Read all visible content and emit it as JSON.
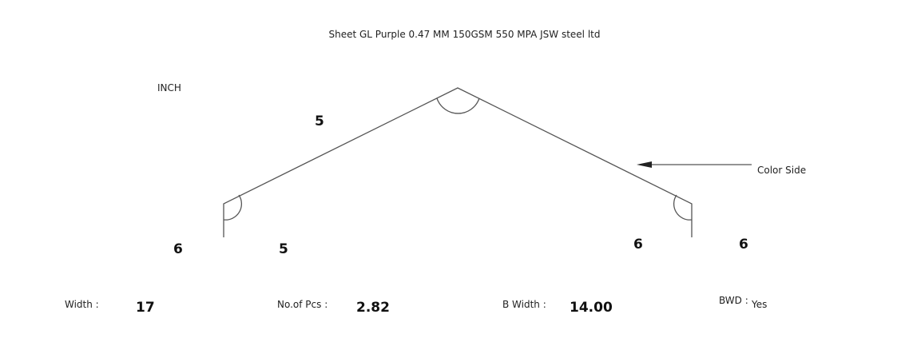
{
  "title": "Sheet GL Purple 0.47 MM 150GSM 550 MPA JSW steel ltd",
  "unit": "INCH",
  "profile": {
    "left_slope": "5",
    "left_leg": "6",
    "left_bottom": "5",
    "right_leg": "6",
    "right_bottom": "6",
    "color_side_label": "Color Side"
  },
  "summary": {
    "width_label": "Width :",
    "width_value": "17",
    "pcs_label": "No.of Pcs :",
    "pcs_value": "2.82",
    "bwidth_label": "B Width :",
    "bwidth_value": "14.00",
    "bwd_label": "BWD :",
    "bwd_value": "Yes"
  },
  "colors": {
    "line": "#555555",
    "text": "#222222",
    "background": "#ffffff"
  }
}
